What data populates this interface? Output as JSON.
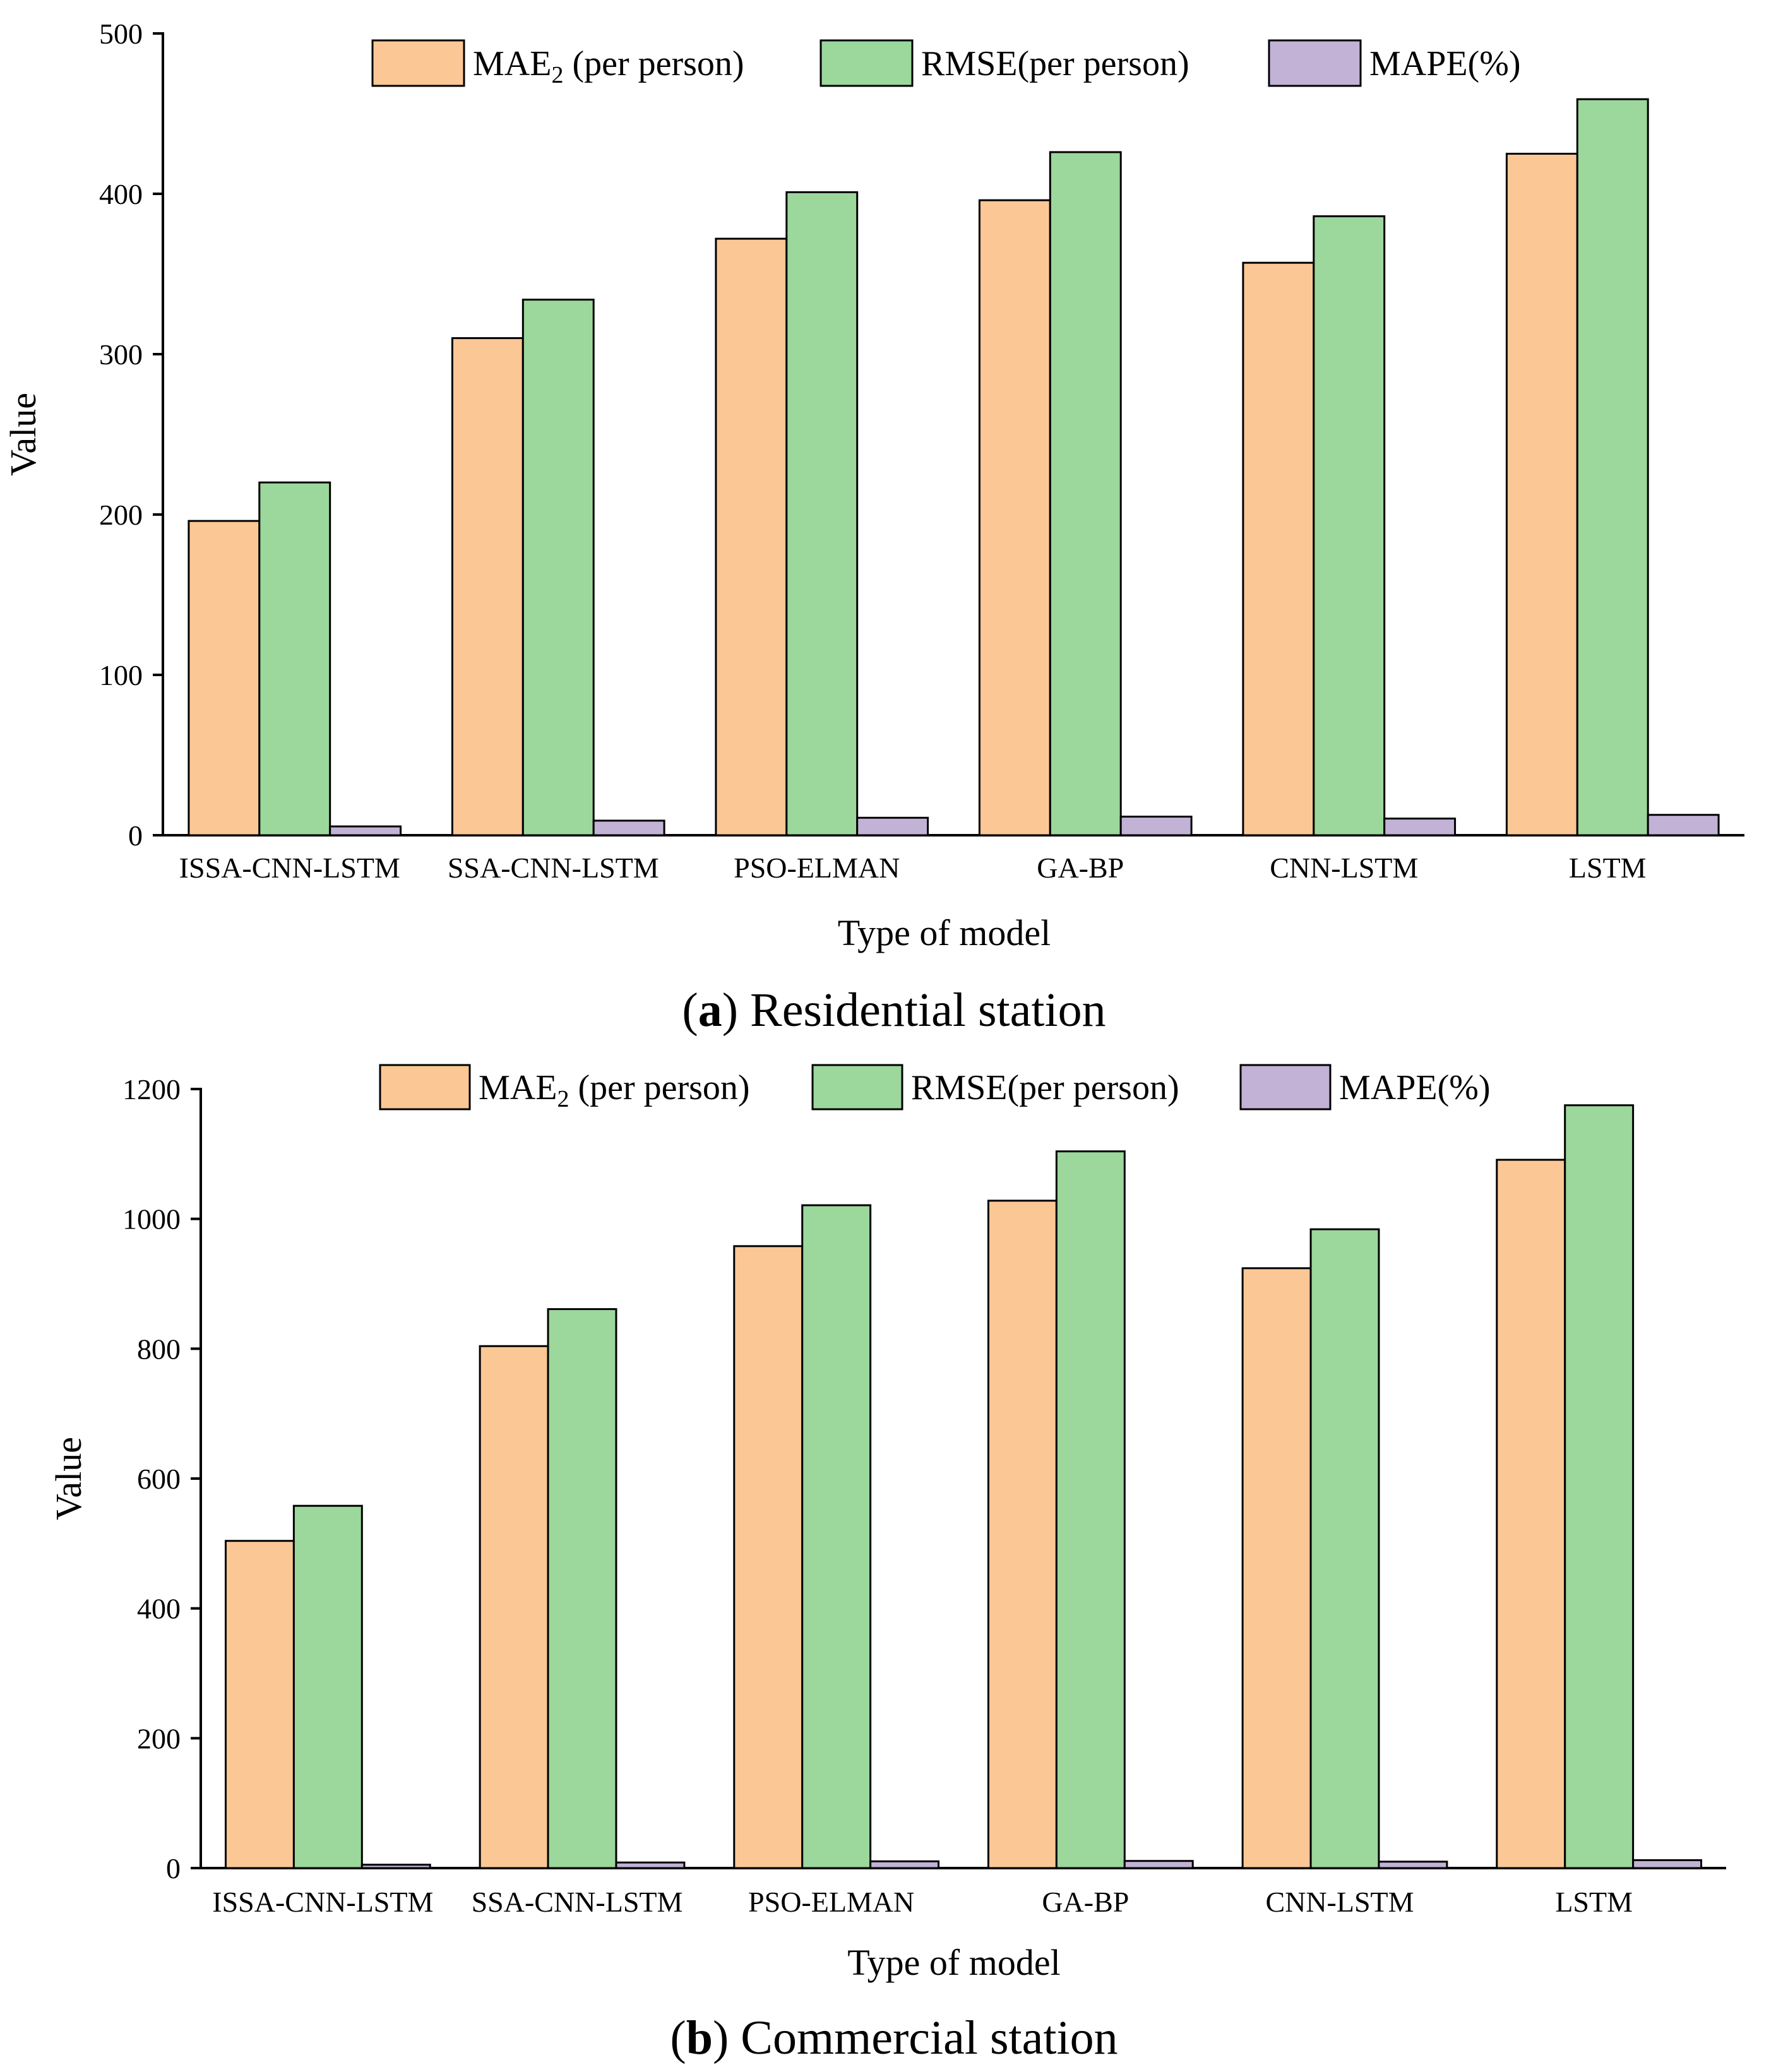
{
  "colors": {
    "mae": "#FBC795",
    "rmse": "#9CD79C",
    "mape": "#C1B2D6",
    "stroke": "#000000"
  },
  "chart_data": [
    {
      "type": "bar",
      "panel_label": "a",
      "caption": "Residential station",
      "xlabel": "Type of model",
      "ylabel": "Value",
      "ylim": [
        0,
        500
      ],
      "yticks": [
        0,
        100,
        200,
        300,
        400,
        500
      ],
      "categories": [
        "ISSA-CNN-LSTM",
        "SSA-CNN-LSTM",
        "PSO-ELMAN",
        "GA-BP",
        "CNN-LSTM",
        "LSTM"
      ],
      "series": [
        {
          "name": "MAE",
          "subscript": "2",
          "suffix": " (per person)",
          "color_key": "mae",
          "values": [
            196,
            310,
            372,
            396,
            357,
            425
          ]
        },
        {
          "name": "RMSE(per person)",
          "subscript": "",
          "suffix": "",
          "color_key": "rmse",
          "values": [
            220,
            334,
            401,
            426,
            386,
            459
          ]
        },
        {
          "name": "MAPE(%)",
          "subscript": "",
          "suffix": "",
          "color_key": "mape",
          "values": [
            5.5,
            9.1,
            10.9,
            11.6,
            10.4,
            12.7
          ]
        }
      ],
      "legend": "top"
    },
    {
      "type": "bar",
      "panel_label": "b",
      "caption": "Commercial station",
      "xlabel": "Type of model",
      "ylabel": "Value",
      "ylim": [
        0,
        1200
      ],
      "yticks": [
        0,
        200,
        400,
        600,
        800,
        1000,
        1200
      ],
      "categories": [
        "ISSA-CNN-LSTM",
        "SSA-CNN-LSTM",
        "PSO-ELMAN",
        "GA-BP",
        "CNN-LSTM",
        "LSTM"
      ],
      "series": [
        {
          "name": "MAE",
          "subscript": "2",
          "suffix": " (per person)",
          "color_key": "mae",
          "values": [
            504,
            804,
            958,
            1028,
            924,
            1091
          ]
        },
        {
          "name": "RMSE(per person)",
          "subscript": "",
          "suffix": "",
          "color_key": "rmse",
          "values": [
            558,
            861,
            1021,
            1104,
            984,
            1175
          ]
        },
        {
          "name": "MAPE(%)",
          "subscript": "",
          "suffix": "",
          "color_key": "mape",
          "values": [
            5.2,
            8.6,
            10.4,
            11.0,
            9.9,
            12.2
          ]
        }
      ],
      "legend": "top"
    }
  ]
}
